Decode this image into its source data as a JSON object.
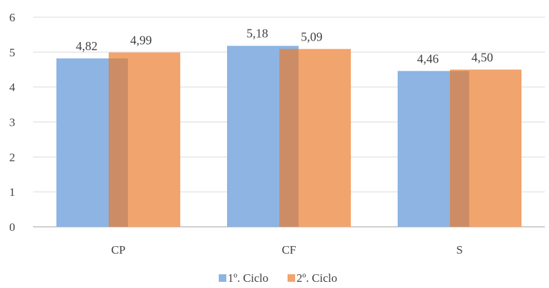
{
  "chart_data": {
    "type": "bar",
    "categories": [
      "CP",
      "CF",
      "S"
    ],
    "series": [
      {
        "name": "1º. Ciclo",
        "values": [
          4.82,
          5.18,
          4.46
        ],
        "labels": [
          "4,82",
          "5,18",
          "4,46"
        ],
        "color": "#8db4e2"
      },
      {
        "name": "2º. Ciclo",
        "values": [
          4.99,
          5.09,
          4.5
        ],
        "labels": [
          "4,99",
          "5,09",
          "4,50"
        ],
        "color": "#f2a46e"
      }
    ],
    "overlap_color": "#cc8d66",
    "ylim": [
      0,
      6
    ],
    "yticks": [
      "0",
      "1",
      "2",
      "3",
      "4",
      "5",
      "6"
    ],
    "grid": true,
    "legend_position": "bottom",
    "title": "",
    "xlabel": "",
    "ylabel": ""
  }
}
